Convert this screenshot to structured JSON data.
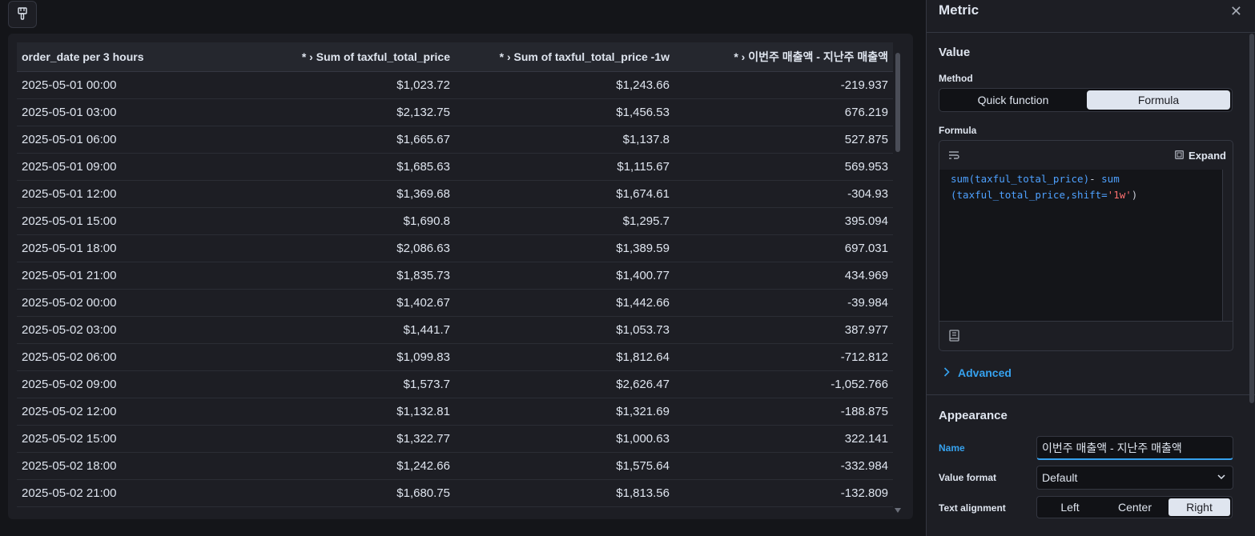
{
  "toolbar": {
    "icon": "paint-brush-icon"
  },
  "table": {
    "headers": [
      "order_date per 3 hours",
      "* › Sum of taxful_total_price",
      "* › Sum of taxful_total_price -1w",
      "* › 이번주 매출액 - 지난주 매출액"
    ],
    "rows": [
      [
        "2025-05-01 00:00",
        "$1,023.72",
        "$1,243.66",
        "-219.937"
      ],
      [
        "2025-05-01 03:00",
        "$2,132.75",
        "$1,456.53",
        "676.219"
      ],
      [
        "2025-05-01 06:00",
        "$1,665.67",
        "$1,137.8",
        "527.875"
      ],
      [
        "2025-05-01 09:00",
        "$1,685.63",
        "$1,115.67",
        "569.953"
      ],
      [
        "2025-05-01 12:00",
        "$1,369.68",
        "$1,674.61",
        "-304.93"
      ],
      [
        "2025-05-01 15:00",
        "$1,690.8",
        "$1,295.7",
        "395.094"
      ],
      [
        "2025-05-01 18:00",
        "$2,086.63",
        "$1,389.59",
        "697.031"
      ],
      [
        "2025-05-01 21:00",
        "$1,835.73",
        "$1,400.77",
        "434.969"
      ],
      [
        "2025-05-02 00:00",
        "$1,402.67",
        "$1,442.66",
        "-39.984"
      ],
      [
        "2025-05-02 03:00",
        "$1,441.7",
        "$1,053.73",
        "387.977"
      ],
      [
        "2025-05-02 06:00",
        "$1,099.83",
        "$1,812.64",
        "-712.812"
      ],
      [
        "2025-05-02 09:00",
        "$1,573.7",
        "$2,626.47",
        "-1,052.766"
      ],
      [
        "2025-05-02 12:00",
        "$1,132.81",
        "$1,321.69",
        "-188.875"
      ],
      [
        "2025-05-02 15:00",
        "$1,322.77",
        "$1,000.63",
        "322.141"
      ],
      [
        "2025-05-02 18:00",
        "$1,242.66",
        "$1,575.64",
        "-332.984"
      ],
      [
        "2025-05-02 21:00",
        "$1,680.75",
        "$1,813.56",
        "-132.809"
      ]
    ]
  },
  "flyout": {
    "title": "Metric",
    "value_section": "Value",
    "method_label": "Method",
    "method_options": [
      "Quick function",
      "Formula"
    ],
    "method_selected": "Formula",
    "formula_label": "Formula",
    "expand_label": "Expand",
    "formula_code": {
      "line1_fn": "sum",
      "line1_arg": "(taxful_total_price)",
      "line1_op": "- ",
      "line1_fn2": "sum",
      "line2_arg": "(taxful_total_price,shift=",
      "line2_str": "'1w'",
      "line2_close": ")"
    },
    "advanced_label": "Advanced",
    "appearance_section": "Appearance",
    "name_label": "Name",
    "name_value": "이번주 매출액 - 지난주 매출액",
    "value_format_label": "Value format",
    "value_format_value": "Default",
    "text_alignment_label": "Text alignment",
    "alignment_options": [
      "Left",
      "Center",
      "Right"
    ],
    "alignment_selected": "Right"
  },
  "colors": {
    "accent": "#36a2ef",
    "background": "#141519",
    "panel": "#1d1e24"
  }
}
